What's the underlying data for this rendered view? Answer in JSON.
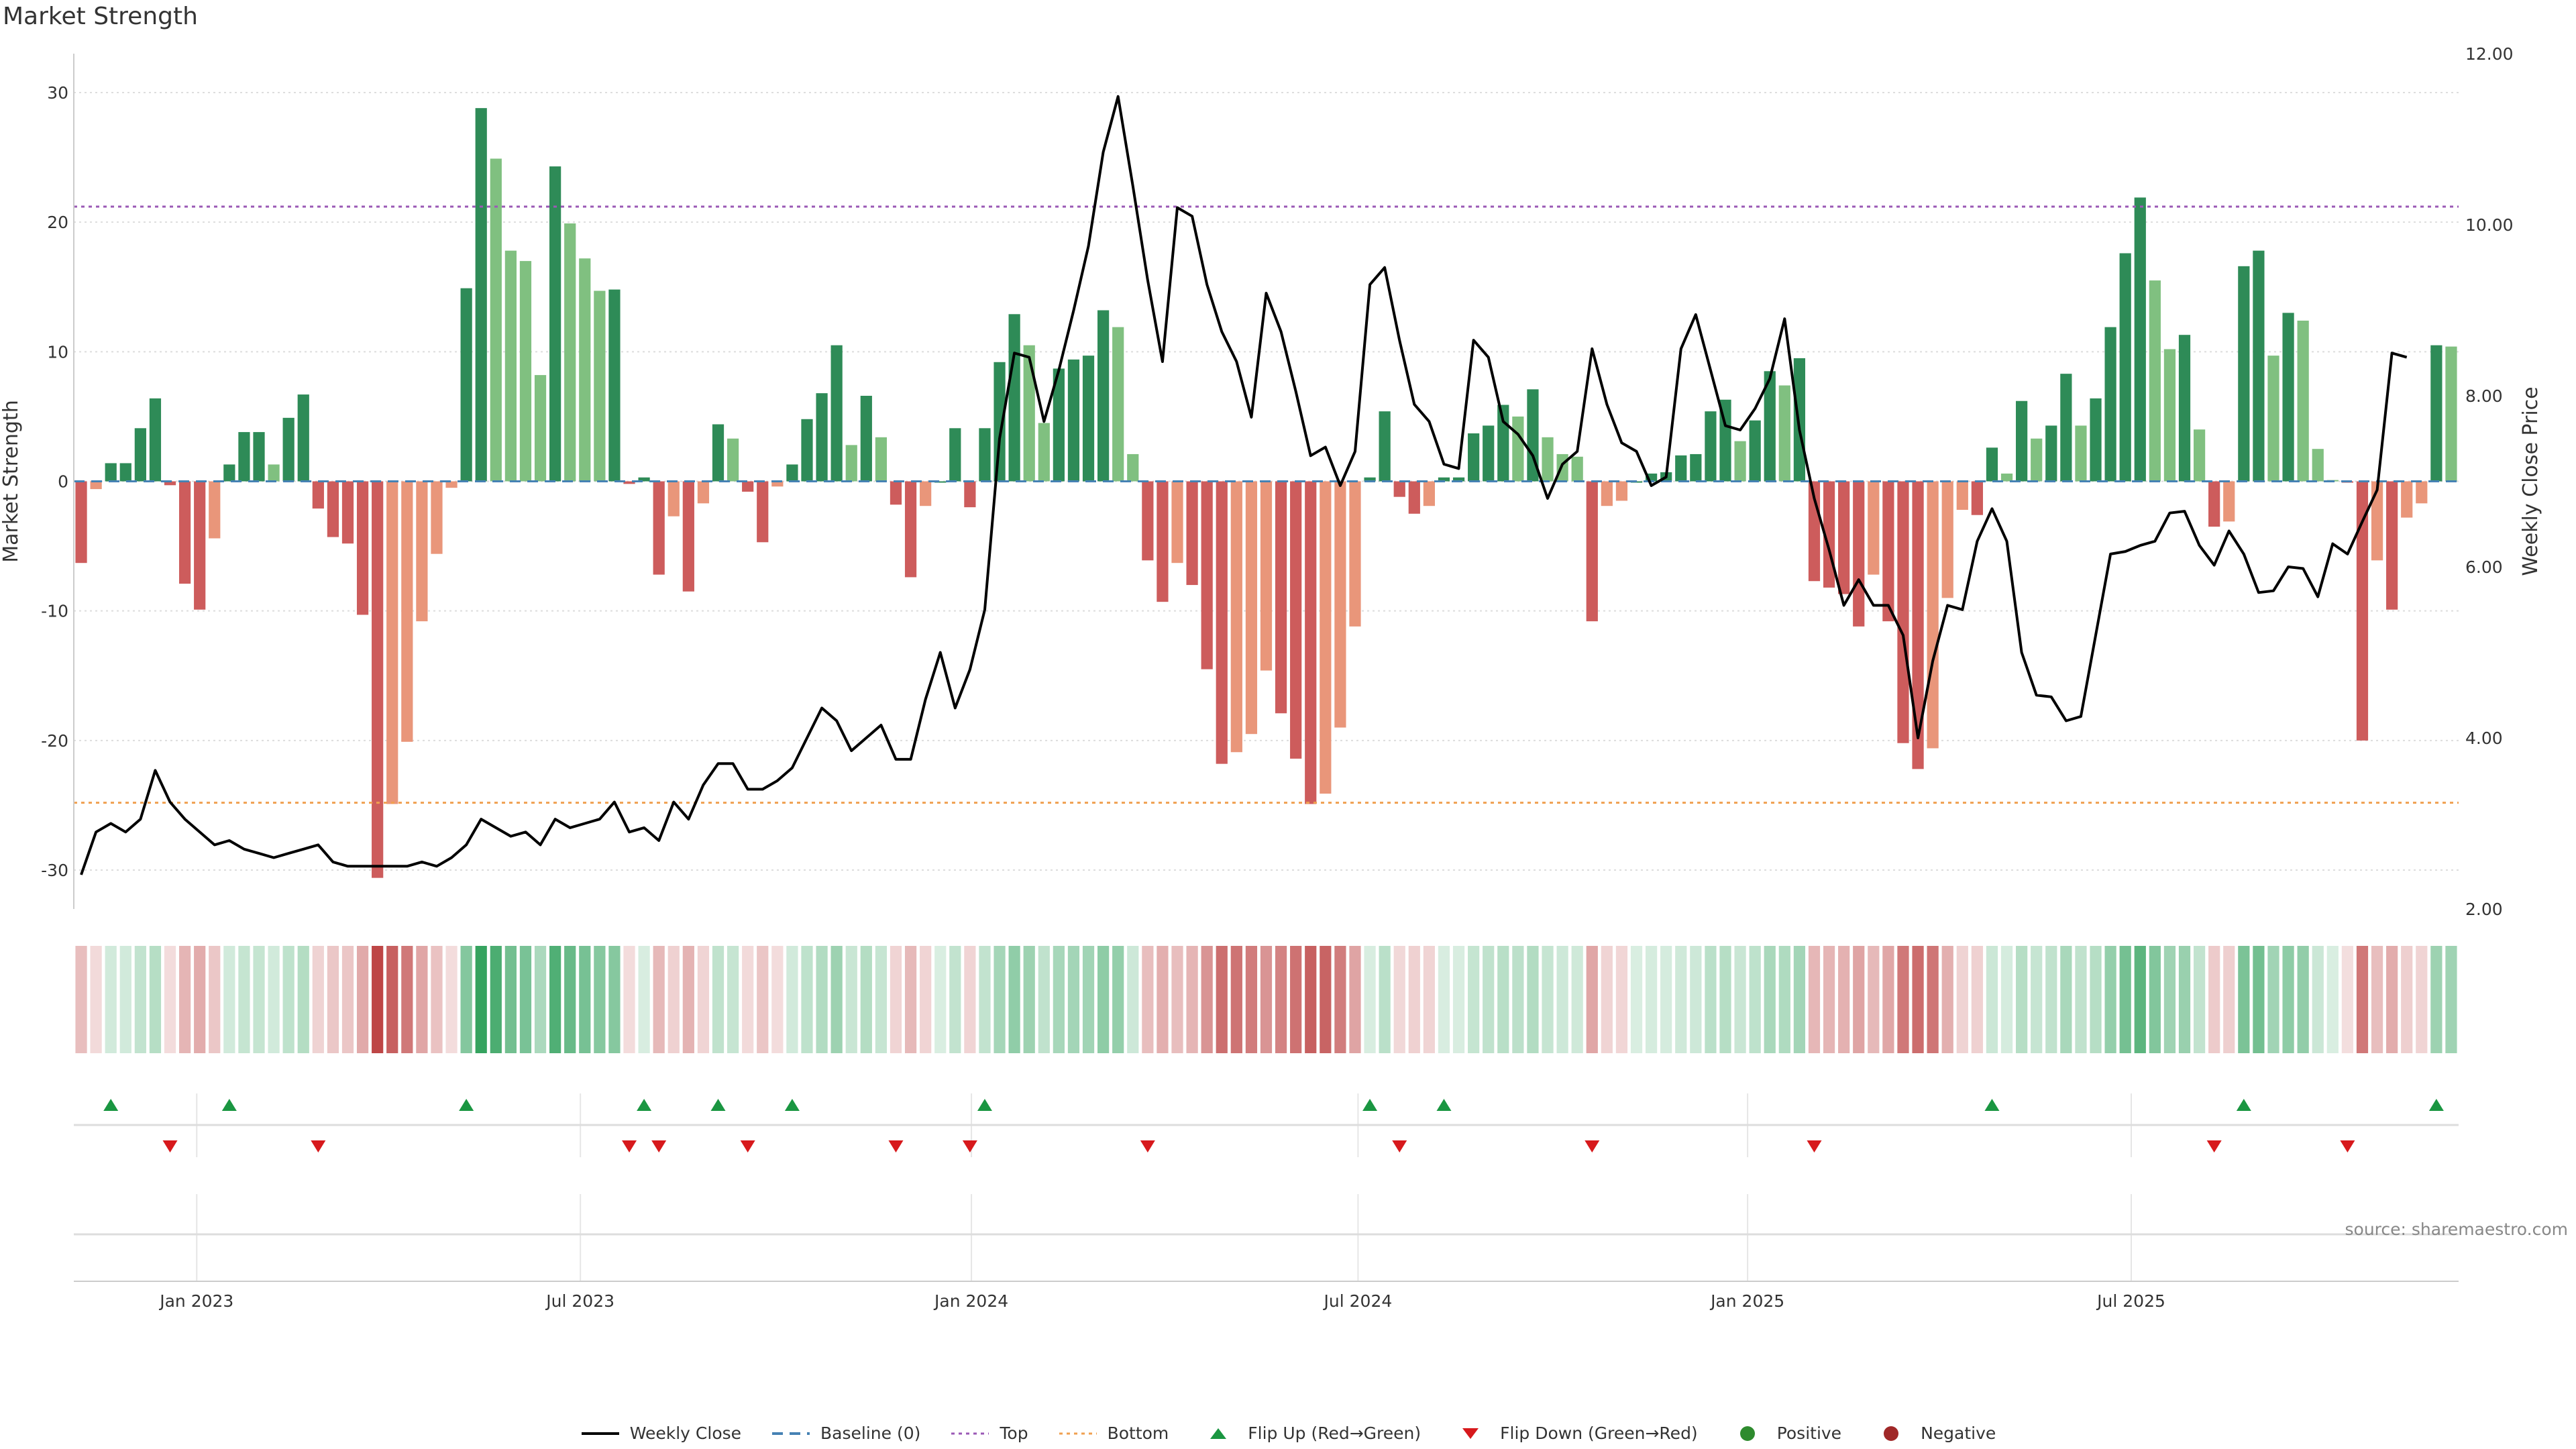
{
  "title": "Market Strength",
  "source": "source: sharemaestro.com",
  "colors": {
    "posStrong": "#2e8b57",
    "posWeak": "#80c080",
    "negStrong": "#cd5c5c",
    "negWeak": "#e9967a",
    "price": "#000000",
    "baseline": "#4682b4",
    "top": "#9b59b6",
    "bottom": "#f0a050",
    "flipUp": "#1a9641",
    "flipDown": "#d7191c",
    "grid": "#dddddd"
  },
  "legend": [
    {
      "type": "line",
      "label": "Weekly Close"
    },
    {
      "type": "baseline",
      "label": "Baseline (0)"
    },
    {
      "type": "top",
      "label": "Top"
    },
    {
      "type": "bottom",
      "label": "Bottom"
    },
    {
      "type": "up",
      "label": "Flip Up (Red→Green)"
    },
    {
      "type": "down",
      "label": "Flip Down (Green→Red)"
    },
    {
      "type": "pos",
      "label": "Positive"
    },
    {
      "type": "neg",
      "label": "Negative"
    }
  ],
  "chart_data": {
    "type": "bar",
    "ylabel": "Market Strength",
    "y2label": "Weekly Close Price",
    "ylim": [
      -33,
      33
    ],
    "y2lim": [
      2.0,
      12.0
    ],
    "yticks": [
      -30,
      -20,
      -10,
      0,
      10,
      20,
      30
    ],
    "y2ticks": [
      "2.00",
      "4.00",
      "6.00",
      "8.00",
      "10.00",
      "12.00"
    ],
    "top_level": 21.2,
    "bottom_level": -24.8,
    "x_ticks": [
      {
        "label": "Jan 2023",
        "index": 8.3
      },
      {
        "label": "Jul 2023",
        "index": 34.2
      },
      {
        "label": "Jan 2024",
        "index": 60.6
      },
      {
        "label": "Jul 2024",
        "index": 86.7
      },
      {
        "label": "Jan 2025",
        "index": 113.0
      },
      {
        "label": "Jul 2025",
        "index": 138.9
      }
    ],
    "strength": [
      -6.3,
      -0.6,
      1.4,
      1.4,
      4.1,
      6.4,
      -0.3,
      -7.9,
      -9.9,
      -4.4,
      1.3,
      3.8,
      3.8,
      1.3,
      4.9,
      6.7,
      -2.1,
      -4.3,
      -4.8,
      -10.3,
      -30.6,
      -24.9,
      -20.1,
      -10.8,
      -5.6,
      -0.5,
      14.9,
      28.8,
      24.9,
      17.8,
      17.0,
      8.2,
      24.3,
      19.9,
      17.2,
      14.7,
      14.8,
      -0.2,
      0.3,
      -7.2,
      -2.7,
      -8.5,
      -1.7,
      4.4,
      3.3,
      -0.8,
      -4.7,
      -0.4,
      1.3,
      4.8,
      6.8,
      10.5,
      2.8,
      6.6,
      3.4,
      -1.8,
      -7.4,
      -1.9,
      0.0,
      4.1,
      -2.0,
      4.1,
      9.2,
      12.9,
      10.5,
      4.5,
      8.7,
      9.4,
      9.7,
      13.2,
      11.9,
      2.1,
      -6.1,
      -9.3,
      -6.3,
      -8.0,
      -14.5,
      -21.8,
      -20.9,
      -19.5,
      -14.6,
      -17.9,
      -21.4,
      -24.9,
      -24.1,
      -19.0,
      -11.2,
      0.3,
      5.4,
      -1.2,
      -2.5,
      -1.9,
      0.3,
      0.3,
      3.7,
      4.3,
      5.9,
      5.0,
      7.1,
      3.4,
      2.1,
      1.9,
      -10.8,
      -1.9,
      -1.5,
      0.0,
      0.6,
      0.7,
      2.0,
      2.1,
      5.4,
      6.3,
      3.1,
      4.7,
      8.5,
      7.4,
      9.5,
      -7.7,
      -8.2,
      -8.7,
      -11.2,
      -7.2,
      -10.8,
      -20.2,
      -22.2,
      -20.6,
      -9.0,
      -2.2,
      -2.6,
      2.6,
      0.6,
      6.2,
      3.3,
      4.3,
      8.3,
      4.3,
      6.4,
      11.9,
      17.6,
      21.9,
      15.5,
      10.2,
      11.3,
      4.0,
      -3.5,
      -3.1,
      16.6,
      17.8,
      9.7,
      13.0,
      12.4,
      2.5,
      0.1,
      -0.1,
      -20.0,
      -6.1,
      -9.9,
      -2.8,
      -1.7,
      10.5,
      10.4
    ],
    "weekly_close": [
      2.4,
      2.9,
      3.0,
      2.9,
      3.05,
      3.62,
      3.25,
      3.05,
      2.9,
      2.75,
      2.8,
      2.7,
      2.65,
      2.6,
      2.65,
      2.7,
      2.75,
      2.55,
      2.5,
      2.5,
      2.5,
      2.5,
      2.5,
      2.55,
      2.5,
      2.6,
      2.75,
      3.05,
      2.95,
      2.85,
      2.9,
      2.75,
      3.05,
      2.95,
      3.0,
      3.05,
      3.25,
      2.9,
      2.95,
      2.8,
      3.25,
      3.05,
      3.45,
      3.7,
      3.7,
      3.4,
      3.4,
      3.5,
      3.65,
      4.0,
      4.35,
      4.2,
      3.85,
      4.0,
      4.15,
      3.75,
      3.75,
      4.45,
      5.0,
      4.35,
      4.8,
      5.5,
      7.5,
      8.5,
      8.45,
      7.7,
      8.3,
      9.0,
      9.75,
      10.85,
      11.5,
      10.45,
      9.35,
      8.4,
      10.2,
      10.1,
      9.3,
      8.75,
      8.4,
      7.75,
      9.2,
      8.75,
      8.05,
      7.3,
      7.4,
      6.95,
      7.35,
      9.3,
      9.5,
      8.65,
      7.9,
      7.7,
      7.2,
      7.15,
      8.65,
      8.45,
      7.7,
      7.55,
      7.3,
      6.8,
      7.2,
      7.35,
      8.55,
      7.9,
      7.45,
      7.35,
      6.95,
      7.05,
      8.55,
      8.95,
      8.3,
      7.65,
      7.6,
      7.85,
      8.2,
      8.9,
      7.6,
      6.8,
      6.2,
      5.55,
      5.85,
      5.55,
      5.55,
      5.2,
      4.0,
      4.9,
      5.55,
      5.5,
      6.3,
      6.68,
      6.3,
      5.0,
      4.5,
      4.48,
      4.2,
      4.25,
      5.2,
      6.15,
      6.18,
      6.25,
      6.3,
      6.63,
      6.65,
      6.25,
      6.02,
      6.42,
      6.15,
      5.7,
      5.72,
      6.0,
      5.98,
      5.65,
      6.27,
      6.15,
      6.53,
      6.9,
      8.5,
      8.45
    ]
  }
}
